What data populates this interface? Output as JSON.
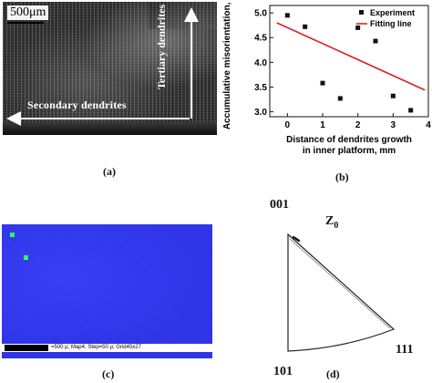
{
  "panel_a": {
    "scale_label": "500μm",
    "secondary_label": "Secondary dendrites",
    "tertiary_label": "Tertiary dendrites",
    "caption": "(a)"
  },
  "panel_b": {
    "caption": "(b)"
  },
  "chart_data": {
    "type": "scatter",
    "xlabel": "Distance of dendrites growth in inner platform, mm",
    "xlabel_lines": [
      "Distance of dendrites growth",
      "in inner platform, mm"
    ],
    "ylabel": "Accumulative misorientation, °",
    "xlim": [
      -0.5,
      4.0
    ],
    "ylim": [
      2.9,
      5.15
    ],
    "xticks": [
      "0",
      "1",
      "2",
      "3",
      "4"
    ],
    "yticks": [
      "3.0",
      "3.5",
      "4.0",
      "4.5",
      "5.0"
    ],
    "legend_position": "top-right",
    "series": [
      {
        "name": "Experiment",
        "marker": "square",
        "color": "#111111",
        "x": [
          0.0,
          0.5,
          1.0,
          1.5,
          2.0,
          2.5,
          3.0,
          3.5
        ],
        "y": [
          4.95,
          4.72,
          3.58,
          3.27,
          4.7,
          4.43,
          3.32,
          3.03
        ]
      },
      {
        "name": "Fitting line",
        "type": "line",
        "color": "#dd2222",
        "x": [
          -0.3,
          3.9
        ],
        "y": [
          4.8,
          3.44
        ]
      }
    ]
  },
  "panel_c": {
    "info_text": "=500 µ; Map4; Step=50 µ; Grid45x27",
    "caption": "(c)",
    "map_color": "#2d32e6",
    "point_color": "#33ff55"
  },
  "panel_d": {
    "label_001": "001",
    "label_z": "Z",
    "label_z_sub": "0",
    "label_111": "111",
    "label_101": "101",
    "caption": "(d)"
  }
}
